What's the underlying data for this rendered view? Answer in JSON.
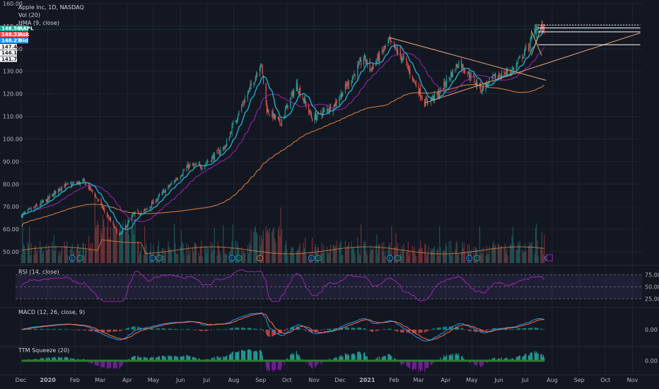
{
  "chart_data": {
    "type": "candlestick",
    "symbol_title": "Apple Inc, 1D, NASDAQ",
    "indicators_main": [
      "Vol (20)",
      "HMA (9, close)"
    ],
    "price_axis": {
      "ylim": [
        45,
        160
      ],
      "ticks": [
        50,
        60,
        70,
        80,
        90,
        100,
        110,
        120,
        130,
        140,
        150,
        160
      ],
      "tick_labels": [
        "50.00",
        "60.00",
        "70.00",
        "80.00",
        "90.00",
        "100.00",
        "110.00",
        "120.00",
        "130.00",
        "140.00",
        "150.00",
        "160.00"
      ]
    },
    "price_tags": [
      {
        "value": 148.56,
        "text": "148.56",
        "label": "AAPL",
        "color": "#26a69a"
      },
      {
        "value": 148.31,
        "text": "148.31",
        "label": "Ask",
        "color": "#ef5350"
      },
      {
        "value": 148.27,
        "text": "148.27",
        "label": "Bid",
        "color": "#2196f3"
      },
      {
        "value": 147.47,
        "text": "147.47",
        "label": "",
        "color": "#ffffff"
      },
      {
        "value": 146.14,
        "text": "146.14",
        "label": "",
        "color": "#ffffff"
      },
      {
        "value": 141.76,
        "text": "141.76",
        "label": "",
        "color": "#ffffff"
      }
    ],
    "x_axis": {
      "labels": [
        "Dec",
        "2020",
        "Feb",
        "Mar",
        "Apr",
        "May",
        "Jun",
        "Jul",
        "Aug",
        "Sep",
        "Oct",
        "Nov",
        "Dec",
        "2021",
        "Feb",
        "Mar",
        "Apr",
        "May",
        "Jun",
        "Jul",
        "Aug",
        "Sep",
        "Oct",
        "Nov"
      ],
      "bold_labels": [
        "2020",
        "2021"
      ]
    },
    "price_keypoints": [
      {
        "date": "2019-12-01",
        "close": 66
      },
      {
        "date": "2019-12-31",
        "close": 73
      },
      {
        "date": "2020-01-17",
        "close": 79
      },
      {
        "date": "2020-02-12",
        "close": 81
      },
      {
        "date": "2020-02-24",
        "close": 75
      },
      {
        "date": "2020-03-23",
        "close": 57
      },
      {
        "date": "2020-04-09",
        "close": 67
      },
      {
        "date": "2020-04-21",
        "close": 68
      },
      {
        "date": "2020-05-19",
        "close": 79
      },
      {
        "date": "2020-06-10",
        "close": 88
      },
      {
        "date": "2020-06-26",
        "close": 88
      },
      {
        "date": "2020-07-23",
        "close": 97
      },
      {
        "date": "2020-07-31",
        "close": 106
      },
      {
        "date": "2020-08-24",
        "close": 126
      },
      {
        "date": "2020-09-01",
        "close": 134
      },
      {
        "date": "2020-09-08",
        "close": 113
      },
      {
        "date": "2020-09-23",
        "close": 107
      },
      {
        "date": "2020-10-12",
        "close": 124
      },
      {
        "date": "2020-10-30",
        "close": 109
      },
      {
        "date": "2020-11-24",
        "close": 115
      },
      {
        "date": "2020-12-16",
        "close": 128
      },
      {
        "date": "2020-12-28",
        "close": 136
      },
      {
        "date": "2021-01-05",
        "close": 131
      },
      {
        "date": "2021-01-26",
        "close": 143
      },
      {
        "date": "2021-02-12",
        "close": 135
      },
      {
        "date": "2021-03-08",
        "close": 116
      },
      {
        "date": "2021-03-24",
        "close": 120
      },
      {
        "date": "2021-04-16",
        "close": 134
      },
      {
        "date": "2021-05-12",
        "close": 122
      },
      {
        "date": "2021-05-26",
        "close": 127
      },
      {
        "date": "2021-06-18",
        "close": 131
      },
      {
        "date": "2021-07-06",
        "close": 142
      },
      {
        "date": "2021-07-14",
        "close": 150
      },
      {
        "date": "2021-07-23",
        "close": 148.56
      }
    ],
    "rsi": {
      "label": "RSI (14, close)",
      "ylim": [
        10,
        90
      ],
      "levels": [
        25,
        50,
        75
      ],
      "tick_labels": [
        "25.00",
        "50.00",
        "75.00"
      ]
    },
    "macd": {
      "label": "MACD (12, 26, close, 9)",
      "tick_labels": [
        "0.00"
      ]
    },
    "ttm_squeeze": {
      "label": "TTM Squeeze (20)",
      "tick_labels": [
        "0.00"
      ]
    },
    "colors": {
      "up": "#26a69a",
      "down": "#ef5350",
      "hma": "#22b5d6",
      "ma_purple": "#9c27b0",
      "ma_orange": "#e57f3c",
      "trendline": "#e8a673",
      "rsi": "#9c27b0",
      "macd": "#2196f3",
      "signal": "#ff7043",
      "squeeze_on": "#2e7d32",
      "bg": "#131722",
      "grid": "#1f2430"
    },
    "event_markers": [
      "E",
      "D",
      "S"
    ]
  }
}
